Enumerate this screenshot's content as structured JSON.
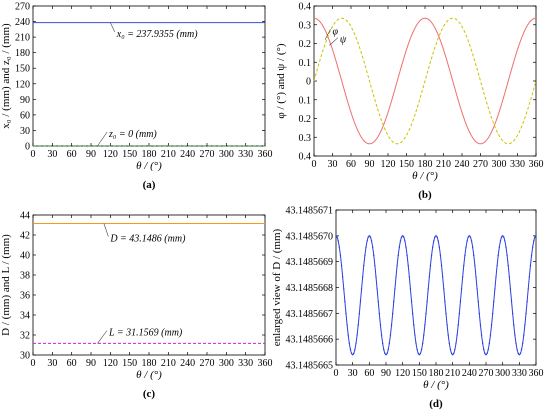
{
  "chart_data": [
    {
      "id": "a",
      "type": "line",
      "panel_label": "(a)",
      "xlabel": "θ  / (°)",
      "ylabel": "x₀ / (mm) and z₀ / (mm)",
      "xlim": [
        0,
        360
      ],
      "ylim": [
        0,
        270
      ],
      "xticks": [
        0,
        30,
        60,
        90,
        120,
        150,
        180,
        210,
        240,
        270,
        300,
        330,
        360
      ],
      "yticks": [
        0,
        30,
        60,
        90,
        120,
        150,
        180,
        210,
        240,
        270
      ],
      "ytick_labels": [
        "0",
        "30",
        "60",
        "90",
        "120",
        "150",
        "180",
        "210",
        "240",
        "270"
      ],
      "grid": false,
      "series": [
        {
          "x": [
            0,
            360
          ],
          "y": [
            237.9355,
            237.9355
          ],
          "color": "#3b4fd6",
          "style": "solid"
        },
        {
          "x": [
            0,
            360
          ],
          "y": [
            0,
            0
          ],
          "color": "#1a8a2a",
          "style": "dashed"
        }
      ],
      "annotations": [
        {
          "text": "x₀ = 237.9355 (mm)",
          "x": 120,
          "y": 237.9355,
          "tx": 130,
          "ty": 214
        },
        {
          "text": "z₀ = 0 (mm)",
          "x": 100,
          "y": 0,
          "tx": 118,
          "ty": 21
        }
      ]
    },
    {
      "id": "b",
      "type": "line",
      "panel_label": "(b)",
      "xlabel": "θ  / (°)",
      "ylabel": "φ / (°) and ψ / (°)",
      "xlim": [
        0,
        360
      ],
      "ylim": [
        -0.4,
        0.4
      ],
      "y_inverted": true,
      "xticks": [
        0,
        30,
        60,
        90,
        120,
        150,
        180,
        210,
        240,
        270,
        300,
        330,
        360
      ],
      "yticks": [
        -0.4,
        -0.3,
        -0.2,
        -0.1,
        0,
        0.1,
        0.2,
        0.3,
        0.4
      ],
      "ytick_labels": [
        "0.4",
        "0.3",
        "0.2",
        "0.1",
        "0",
        "0.1",
        "0.2",
        "0.3",
        "0.4"
      ],
      "grid": false,
      "series": [
        {
          "amplitude": 0.335,
          "phase_deg": 0,
          "period_deg": 180,
          "color": "#ee7070",
          "style": "solid"
        },
        {
          "amplitude": 0.335,
          "phase_deg": 45,
          "period_deg": 180,
          "color": "#c9c400",
          "style": "dashed"
        }
      ],
      "annotations": [
        {
          "text": "φ",
          "x": 18,
          "y": -0.22,
          "tx": 30,
          "ty": -0.26
        },
        {
          "text": "ψ",
          "x": 25,
          "y": -0.19,
          "tx": 42,
          "ty": -0.215
        }
      ]
    },
    {
      "id": "c",
      "type": "line",
      "panel_label": "(c)",
      "xlabel": "θ  / (°)",
      "ylabel": "D / (mm) and L / (mm)",
      "xlim": [
        0,
        360
      ],
      "ylim": [
        30,
        44
      ],
      "xticks": [
        0,
        30,
        60,
        90,
        120,
        150,
        180,
        210,
        240,
        270,
        300,
        330,
        360
      ],
      "yticks": [
        30,
        32,
        34,
        36,
        38,
        40,
        42,
        44
      ],
      "ytick_labels": [
        "30",
        "32",
        "34",
        "36",
        "38",
        "40",
        "42",
        "44"
      ],
      "grid": false,
      "series": [
        {
          "x": [
            0,
            360
          ],
          "y": [
            43.1486,
            43.1486
          ],
          "color": "#f39a1e",
          "style": "solid"
        },
        {
          "x": [
            0,
            360
          ],
          "y": [
            31.1569,
            31.1569
          ],
          "color": "#d020d0",
          "style": "dashed"
        }
      ],
      "annotations": [
        {
          "text": "D = 43.1486 (mm)",
          "x": 110,
          "y": 43.1486,
          "tx": 120,
          "ty": 41.55
        },
        {
          "text": "L = 31.1569 (mm)",
          "x": 100,
          "y": 31.1569,
          "tx": 118,
          "ty": 32.15
        }
      ]
    },
    {
      "id": "d",
      "type": "line",
      "panel_label": "(d)",
      "xlabel": "θ  / (°)",
      "ylabel": "enlarged view of D / (mm)",
      "xlim": [
        0,
        360
      ],
      "ylim": [
        43.1485665,
        43.1485671
      ],
      "xticks": [
        0,
        30,
        60,
        90,
        120,
        150,
        180,
        210,
        240,
        270,
        300,
        330,
        360
      ],
      "yticks": [
        43.1485665,
        43.1485666,
        43.1485667,
        43.1485668,
        43.1485669,
        43.148567,
        43.1485671
      ],
      "ytick_labels": [
        "43.1485665",
        "43.1485666",
        "43.1485667",
        "43.1485668",
        "43.1485669",
        "43.1485670",
        "43.1485671"
      ],
      "grid": false,
      "series": [
        {
          "mean": 43.14856677,
          "amplitude": 2.3e-07,
          "period_deg": 60,
          "start_at_max": true,
          "color": "#2b3fe0",
          "style": "dotted-solid"
        }
      ],
      "annotations": []
    }
  ]
}
